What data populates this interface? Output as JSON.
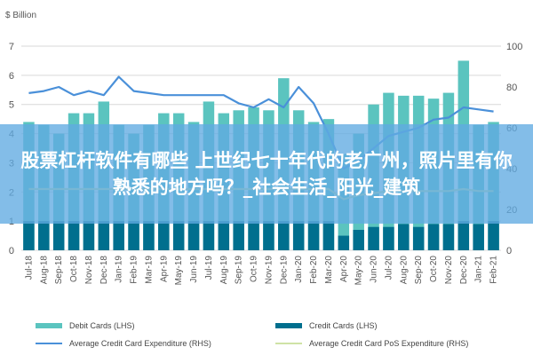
{
  "watermark_text": "股票杠杆软件有哪些 上世纪七十年代的老广州，照片里有你熟悉的地方吗？_社会生活_阳光_建筑",
  "chart_data": {
    "type": "bar",
    "unit_label": "$ Billion",
    "categories": [
      "Jul-18",
      "Aug-18",
      "Sep-18",
      "Oct-18",
      "Nov-18",
      "Dec-18",
      "Jan-19",
      "Feb-19",
      "Mar-19",
      "Apr-19",
      "May-19",
      "Jun-19",
      "Jul-19",
      "Aug-19",
      "Sep-19",
      "Oct-19",
      "Nov-19",
      "Dec-19",
      "Jan-20",
      "Feb-20",
      "Mar-20",
      "Apr-20",
      "May-20",
      "Jun-20",
      "Jul-20",
      "Aug-20",
      "Sep-20",
      "Oct-20",
      "Nov-20",
      "Dec-20",
      "Jan-21",
      "Feb-21"
    ],
    "y_left": {
      "min": 0,
      "max": 7,
      "ticks": [
        0,
        1,
        2,
        3,
        4,
        5,
        6,
        7
      ]
    },
    "y_right": {
      "min": 0,
      "max": 100,
      "ticks": [
        0,
        20,
        40,
        60,
        80,
        100
      ]
    },
    "grid": true,
    "legend_position": "bottom",
    "colors": {
      "debit": "#5bc4bf",
      "credit": "#006f8e",
      "avg_credit": "#4a90d9",
      "avg_debit": "#cfe3a6"
    },
    "series": [
      {
        "name": "Debit Cards (LHS)",
        "kind": "bar",
        "axis": "left",
        "values": [
          4.4,
          4.3,
          4.0,
          4.7,
          4.7,
          5.1,
          4.3,
          4.0,
          4.3,
          4.7,
          4.7,
          4.4,
          5.1,
          4.7,
          4.8,
          4.9,
          4.8,
          5.9,
          4.8,
          4.4,
          4.5,
          3.3,
          4.0,
          5.0,
          5.4,
          5.3,
          5.3,
          5.2,
          5.4,
          6.5,
          4.3,
          4.4
        ]
      },
      {
        "name": "Credit Cards (LHS)",
        "kind": "bar",
        "axis": "left",
        "values": [
          1.0,
          1.0,
          1.0,
          1.0,
          1.0,
          1.0,
          1.0,
          1.0,
          1.0,
          1.0,
          1.0,
          1.0,
          1.0,
          1.0,
          1.0,
          1.0,
          1.0,
          1.0,
          1.0,
          1.0,
          1.0,
          0.5,
          0.7,
          0.8,
          0.8,
          0.9,
          0.8,
          0.9,
          0.9,
          1.0,
          0.9,
          1.0
        ]
      },
      {
        "name": "Average Credit Card Expenditure (RHS)",
        "kind": "line",
        "axis": "right",
        "values": [
          77,
          78,
          80,
          76,
          78,
          76,
          85,
          78,
          77,
          76,
          76,
          76,
          76,
          76,
          72,
          70,
          74,
          70,
          80,
          72,
          57,
          40,
          44,
          50,
          56,
          58,
          60,
          64,
          65,
          70,
          69,
          68
        ]
      },
      {
        "name": "Average Credit Card PoS Expenditure (RHS)",
        "kind": "line",
        "axis": "right",
        "values": [
          30,
          30,
          30,
          30,
          30,
          30,
          30,
          30,
          30,
          30,
          30,
          30,
          30,
          30,
          30,
          30,
          30,
          30,
          30,
          30,
          30,
          25,
          27,
          28,
          29,
          29,
          29,
          29,
          29,
          30,
          29,
          29
        ]
      }
    ]
  }
}
